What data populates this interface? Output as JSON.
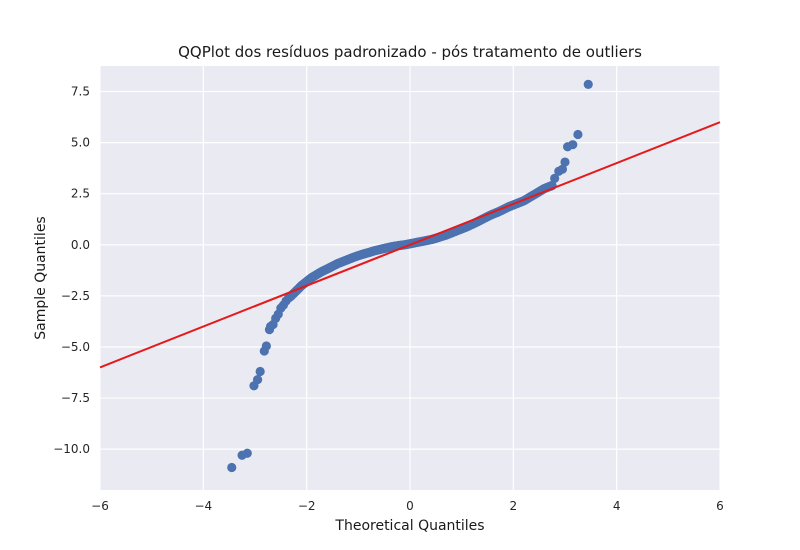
{
  "chart_data": {
    "type": "scatter",
    "title": "QQPlot dos resíduos padronizado  - pós tratamento de outliers",
    "xlabel": "Theoretical Quantiles",
    "ylabel": "Sample Quantiles",
    "xlim": [
      -6,
      6
    ],
    "ylim": [
      -12,
      8.75
    ],
    "xticks": [
      -6,
      -4,
      -2,
      0,
      2,
      4,
      6
    ],
    "xtick_labels": [
      "−6",
      "−4",
      "−2",
      "0",
      "2",
      "4",
      "6"
    ],
    "yticks": [
      -10,
      -7.5,
      -5,
      -2.5,
      0,
      2.5,
      5,
      7.5
    ],
    "ytick_labels": [
      "−10.0",
      "−7.5",
      "−5.0",
      "−2.5",
      "0.0",
      "2.5",
      "5.0",
      "7.5"
    ],
    "grid": true,
    "background": "#eaeaf2",
    "grid_color": "#ffffff",
    "point_color": "#4c72b0",
    "line_color": "#e41a1c",
    "reference_line": {
      "x": [
        -6,
        6
      ],
      "y": [
        -6,
        6
      ]
    },
    "series": [
      {
        "values_x": [
          -3.45,
          -3.25,
          -3.15,
          -3.02,
          -2.95,
          -2.9,
          -2.82,
          -2.78,
          -2.72,
          -2.7,
          -2.65,
          -2.6,
          -2.55,
          -2.5,
          -2.45,
          -2.4,
          -2.35,
          -2.3,
          -2.2,
          -2.1,
          -2.0,
          -1.9,
          -1.8,
          -1.7,
          -1.6,
          -1.5,
          -1.4,
          -1.3,
          -1.2,
          -1.1,
          -1.0,
          -0.9,
          -0.8,
          -0.7,
          -0.6,
          -0.5,
          -0.4,
          -0.3,
          -0.2,
          -0.1,
          0.0,
          0.1,
          0.2,
          0.3,
          0.4,
          0.5,
          0.6,
          0.7,
          0.8,
          0.9,
          1.0,
          1.1,
          1.2,
          1.3,
          1.4,
          1.5,
          1.6,
          1.7,
          1.8,
          1.9,
          2.0,
          2.1,
          2.2,
          2.3,
          2.4,
          2.5,
          2.6,
          2.7,
          2.75,
          2.8,
          2.88,
          2.95,
          3.0,
          3.05,
          3.15,
          3.25,
          3.45
        ],
        "values_y": [
          -10.9,
          -10.3,
          -10.2,
          -6.9,
          -6.6,
          -6.2,
          -5.2,
          -4.95,
          -4.15,
          -4.0,
          -3.9,
          -3.6,
          -3.4,
          -3.1,
          -2.95,
          -2.75,
          -2.6,
          -2.5,
          -2.25,
          -2.0,
          -1.8,
          -1.6,
          -1.45,
          -1.3,
          -1.18,
          -1.05,
          -0.92,
          -0.82,
          -0.72,
          -0.62,
          -0.53,
          -0.45,
          -0.38,
          -0.3,
          -0.24,
          -0.18,
          -0.12,
          -0.07,
          -0.03,
          0.0,
          0.05,
          0.1,
          0.15,
          0.2,
          0.25,
          0.32,
          0.4,
          0.48,
          0.58,
          0.68,
          0.78,
          0.88,
          1.0,
          1.12,
          1.25,
          1.38,
          1.5,
          1.6,
          1.72,
          1.85,
          1.95,
          2.05,
          2.15,
          2.3,
          2.45,
          2.6,
          2.75,
          2.85,
          2.9,
          3.25,
          3.6,
          3.7,
          4.05,
          4.8,
          4.9,
          5.4,
          7.85
        ]
      }
    ]
  }
}
